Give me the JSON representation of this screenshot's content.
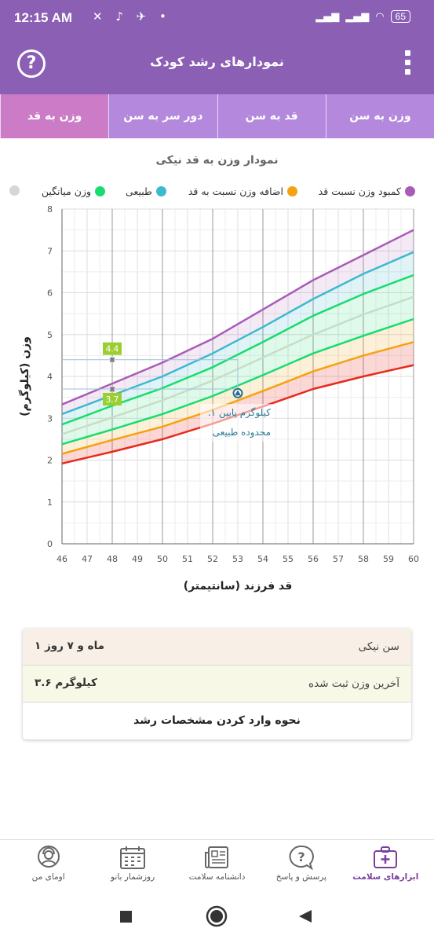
{
  "status_bar": {
    "time": "12:15 AM",
    "battery": "65"
  },
  "header": {
    "title": "نمودارهای رشد کودک",
    "help_icon": "question-circle-icon",
    "menu_icon": "kebab-menu-icon"
  },
  "tabs": [
    {
      "label": "وزن به سن",
      "active": false
    },
    {
      "label": "قد به سن",
      "active": false
    },
    {
      "label": "دور سر به سن",
      "active": false
    },
    {
      "label": "وزن به قد",
      "active": true
    }
  ],
  "chart_section": {
    "title": "نمودار وزن به قد نیکی",
    "legend": [
      {
        "label": "کمبود وزن نسبت قد",
        "color": "#a95bb8"
      },
      {
        "label": "اضافه وزن نسبت به قد",
        "color": "#f5a210"
      },
      {
        "label": "طبیعی",
        "color": "#3db9cf"
      },
      {
        "label": "وزن میانگین",
        "color": "#19dc6f"
      },
      {
        "label": "",
        "color": "#d6d6d6"
      }
    ]
  },
  "chart_data": {
    "type": "line",
    "xlabel": "قد فرزند (سانتیمتر)",
    "ylabel": "وزن (کیلوگرم)",
    "xlim": [
      46,
      60
    ],
    "ylim": [
      0,
      8
    ],
    "x_ticks": [
      46,
      47,
      48,
      49,
      50,
      51,
      52,
      53,
      54,
      55,
      56,
      57,
      58,
      59,
      60
    ],
    "y_ticks": [
      0,
      1,
      2,
      3,
      4,
      5,
      6,
      7,
      8
    ],
    "grid": true,
    "x": [
      46,
      48,
      50,
      52,
      54,
      56,
      58,
      60
    ],
    "series": [
      {
        "color": "#a95bb8",
        "values": [
          3.33,
          3.83,
          4.33,
          4.9,
          5.6,
          6.3,
          6.9,
          7.5
        ]
      },
      {
        "color": "#3db9cf",
        "values": [
          3.1,
          3.55,
          4.0,
          4.55,
          5.18,
          5.85,
          6.45,
          6.97
        ]
      },
      {
        "color": "#19dc6f",
        "values": [
          2.85,
          3.3,
          3.72,
          4.22,
          4.82,
          5.45,
          5.97,
          6.42
        ]
      },
      {
        "color": "#c8dcc8",
        "values": [
          2.62,
          3.02,
          3.43,
          3.9,
          4.45,
          5.0,
          5.48,
          5.9
        ]
      },
      {
        "color": "#19dc6f",
        "values": [
          2.38,
          2.73,
          3.1,
          3.53,
          4.03,
          4.55,
          4.97,
          5.37
        ]
      },
      {
        "color": "#f5a210",
        "values": [
          2.15,
          2.48,
          2.8,
          3.2,
          3.65,
          4.12,
          4.5,
          4.82
        ]
      },
      {
        "color": "#e8291c",
        "values": [
          1.92,
          2.2,
          2.5,
          2.87,
          3.28,
          3.7,
          4.0,
          4.27
        ]
      }
    ],
    "markers": [
      {
        "x": 48,
        "y": 4.4,
        "label": "4.4"
      },
      {
        "x": 48,
        "y": 3.7,
        "label": "3.7"
      }
    ],
    "child_point": {
      "x": 53,
      "y": 3.6
    },
    "tooltip": [
      ".۱ کیلوگرم پایین",
      "محدوده طبیعی"
    ]
  },
  "info": {
    "age_label": "سن نیکی",
    "age_value": "۱ ماه و ۷ روز",
    "weight_label": "آخرین وزن ثبت شده",
    "weight_value": "۳.۶ کیلوگرم",
    "how_to_link": "نحوه وارد کردن مشخصات رشد"
  },
  "bottom_nav": [
    {
      "label": "ابزارهای سلامت",
      "icon": "first-aid-kit-icon",
      "active": true
    },
    {
      "label": "پرسش و پاسخ",
      "icon": "question-bubble-icon",
      "active": false
    },
    {
      "label": "دانشنامه سلامت",
      "icon": "newspaper-icon",
      "active": false
    },
    {
      "label": "روزشمار بانو",
      "icon": "calendar-icon",
      "active": false
    },
    {
      "label": "اومای من",
      "icon": "profile-avatar-icon",
      "active": false
    }
  ]
}
